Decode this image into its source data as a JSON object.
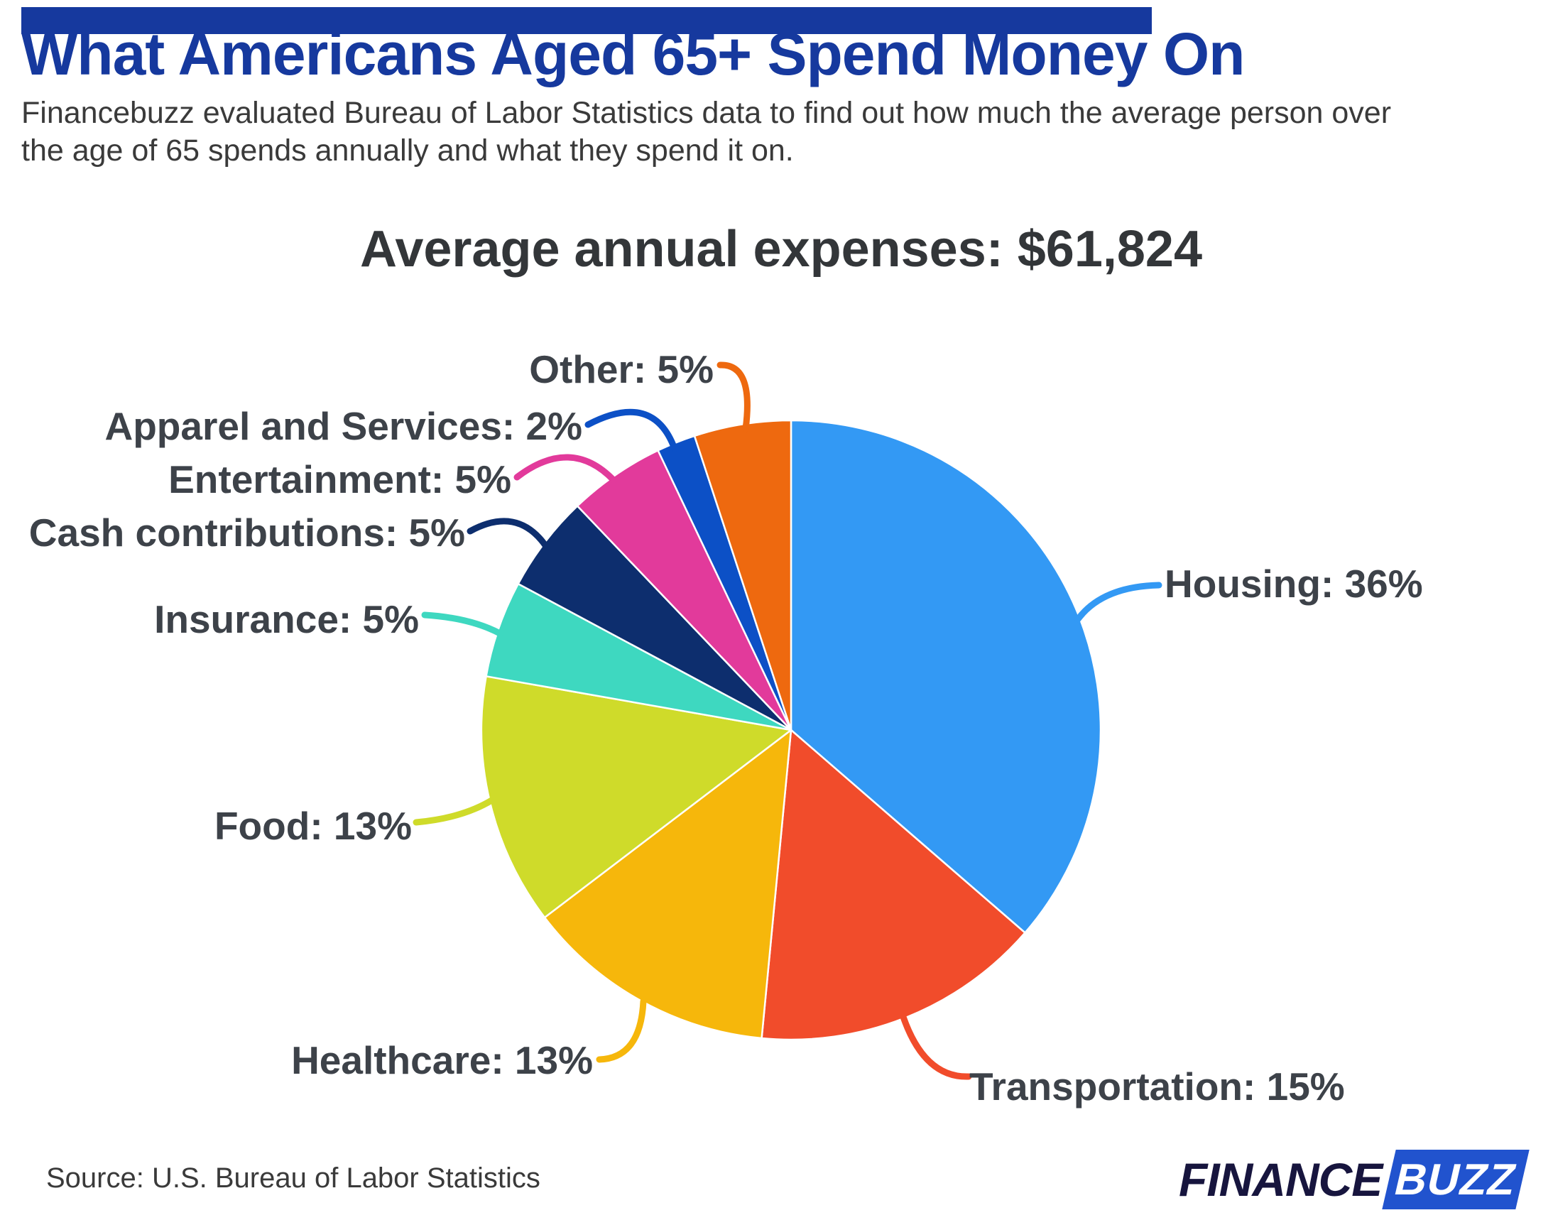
{
  "colors": {
    "brand_blue": "#16399E",
    "chart_title_gray": "#333639",
    "subtitle_gray": "#3A3A3A",
    "text_dark": "#3D4249",
    "logo_navy": "#17153E",
    "logo_badge_blue": "#2153CE"
  },
  "header": {
    "title": "What Americans Aged 65+ Spend Money On",
    "subtitle": "Financebuzz evaluated Bureau of Labor Statistics data to find out how much the average person over the age of 65 spends annually and what they spend it on."
  },
  "chart_data": {
    "type": "pie",
    "title": "Average annual expenses: $61,824",
    "total_value_label": "$61,824",
    "direction": "clockwise",
    "start_angle_deg": 0,
    "legend_position": "callout-labels",
    "slices": [
      {
        "label": "Housing",
        "pct": 36,
        "display": "Housing: 36%",
        "color": "#3399F4"
      },
      {
        "label": "Transportation",
        "pct": 15,
        "display": "Transportation: 15%",
        "color": "#F14C2B"
      },
      {
        "label": "Healthcare",
        "pct": 13,
        "display": "Healthcare: 13%",
        "color": "#F6B70B"
      },
      {
        "label": "Food",
        "pct": 13,
        "display": "Food: 13%",
        "color": "#CFDB2A"
      },
      {
        "label": "Insurance",
        "pct": 5,
        "display": "Insurance: 5%",
        "color": "#3ED8C0"
      },
      {
        "label": "Cash contributions",
        "pct": 5,
        "display": "Cash contributions: 5%",
        "color": "#0D2E6E"
      },
      {
        "label": "Entertainment",
        "pct": 5,
        "display": "Entertainment: 5%",
        "color": "#E23A9B"
      },
      {
        "label": "Apparel and Services",
        "pct": 2,
        "display": "Apparel and Services: 2%",
        "color": "#0C50C6"
      },
      {
        "label": "Other",
        "pct": 5,
        "display": "Other: 5%",
        "color": "#EE690F"
      }
    ]
  },
  "footer": {
    "source": "Source: U.S. Bureau of Labor Statistics",
    "logo_part1": "FINANCE",
    "logo_part2": "BUZZ"
  }
}
